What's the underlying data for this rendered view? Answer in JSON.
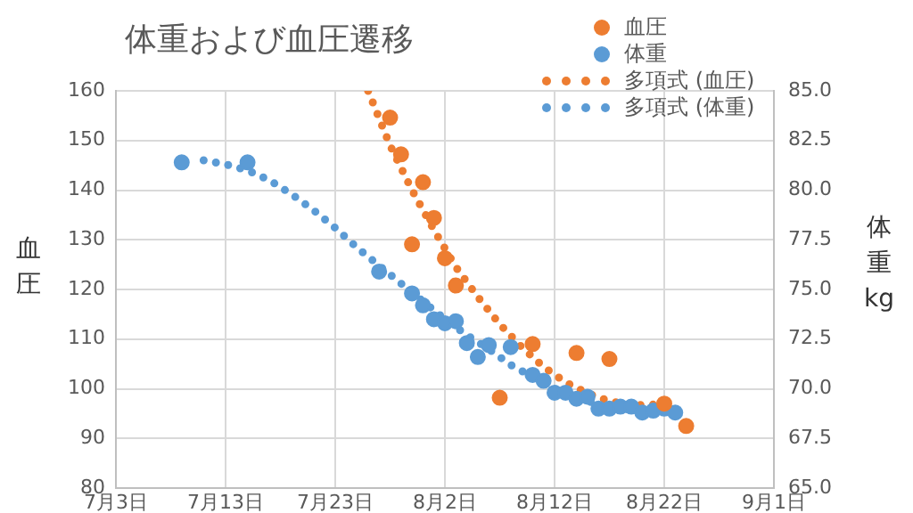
{
  "chart_data": {
    "type": "scatter",
    "title": "体重および血圧遷移",
    "ylabel": "血圧",
    "y2label": "体重kg",
    "xlim": [
      "--07-03",
      "--09-01"
    ],
    "xticks": [
      {
        "value": "--07-03",
        "label": "7月3日"
      },
      {
        "value": "--07-13",
        "label": "7月13日"
      },
      {
        "value": "--07-23",
        "label": "7月23日"
      },
      {
        "value": "--08-02",
        "label": "8月2日"
      },
      {
        "value": "--08-12",
        "label": "8月12日"
      },
      {
        "value": "--08-22",
        "label": "8月22日"
      },
      {
        "value": "--09-01",
        "label": "9月1日"
      }
    ],
    "ylim": [
      80,
      160
    ],
    "yticks": [
      80,
      90,
      100,
      110,
      120,
      130,
      140,
      150,
      160
    ],
    "y2lim": [
      65,
      85
    ],
    "y2ticks": [
      {
        "value": 65,
        "label": "65.0"
      },
      {
        "value": 67.5,
        "label": "67.5"
      },
      {
        "value": 70,
        "label": "70.0"
      },
      {
        "value": 72.5,
        "label": "72.5"
      },
      {
        "value": 75,
        "label": "75.0"
      },
      {
        "value": 77.5,
        "label": "77.5"
      },
      {
        "value": 80,
        "label": "80.0"
      },
      {
        "value": 82.5,
        "label": "82.5"
      },
      {
        "value": 85,
        "label": "85.0"
      }
    ],
    "grid": true,
    "legend": "top right",
    "marker": "circle",
    "series": [
      {
        "name": "血圧",
        "color": "#ed7d31",
        "x": [
          "--07-28",
          "--07-29",
          "--07-30",
          "--07-31",
          "--08-01",
          "--08-02",
          "--08-03",
          "--08-07",
          "--08-10",
          "--08-14",
          "--08-17",
          "--08-22",
          "--08-24"
        ],
        "values": [
          154.6,
          147.2,
          129.1,
          141.6,
          134.4,
          126.3,
          120.8,
          98.2,
          109,
          107.2,
          106,
          97,
          92.5
        ]
      },
      {
        "name": "体重",
        "color": "#5b9bd5",
        "axis": "y2",
        "x": [
          "--07-09",
          "--07-15",
          "--07-27",
          "--07-30",
          "--07-31",
          "--08-01",
          "--08-02",
          "--08-03",
          "--08-04",
          "--08-05",
          "--08-06",
          "--08-08",
          "--08-10",
          "--08-11",
          "--08-12",
          "--08-13",
          "--08-14",
          "--08-15",
          "--08-16",
          "--08-17",
          "--08-18",
          "--08-19",
          "--08-20",
          "--08-21",
          "--08-22",
          "--08-23"
        ],
        "values": [
          81.4,
          81.4,
          75.9,
          74.8,
          74.2,
          73.5,
          73.3,
          73.4,
          72.3,
          71.6,
          72.2,
          72.1,
          70.7,
          70.4,
          69.8,
          69.8,
          69.5,
          69.6,
          69,
          69,
          69.1,
          69.1,
          68.8,
          68.9,
          69,
          68.8
        ]
      },
      {
        "name": "多項式 (血圧)",
        "type": "line",
        "line_style": "dotted",
        "marker": "none",
        "color": "#ed7d31",
        "x": [
          "--07-26",
          "--07-28",
          "--07-30",
          "--08-01",
          "--08-03",
          "--08-05",
          "--08-07",
          "--08-09",
          "--08-11",
          "--08-13",
          "--08-15",
          "--08-17",
          "--08-19",
          "--08-21"
        ],
        "values": [
          160,
          149,
          140,
          132,
          124.5,
          118.5,
          113,
          108.4,
          104.4,
          101.3,
          99.1,
          97.5,
          96.7,
          96.8
        ]
      },
      {
        "name": "多項式 (体重)",
        "type": "line",
        "line_style": "dotted",
        "marker": "none",
        "color": "#5b9bd5",
        "axis": "y2",
        "x": [
          "--07-11",
          "--07-13",
          "--07-15",
          "--07-17",
          "--07-19",
          "--07-21",
          "--07-23",
          "--07-25",
          "--07-27",
          "--07-29",
          "--07-31",
          "--08-02",
          "--08-04",
          "--08-06",
          "--08-08",
          "--08-10",
          "--08-12",
          "--08-14",
          "--08-16",
          "--08-18",
          "--08-20",
          "--08-22"
        ],
        "values": [
          81.5,
          81.3,
          81.0,
          80.5,
          79.8,
          79.0,
          78.1,
          77.1,
          76.2,
          75.3,
          74.4,
          73.5,
          72.7,
          72.0,
          71.2,
          70.6,
          70.0,
          69.6,
          69.2,
          69.0,
          68.9,
          68.9
        ]
      }
    ]
  }
}
